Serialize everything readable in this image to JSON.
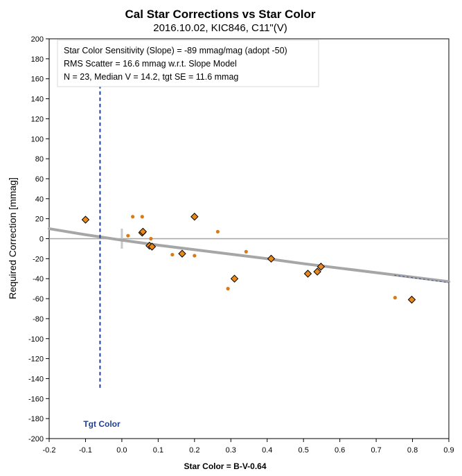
{
  "chart_data": {
    "type": "scatter",
    "title": "Cal Star Corrections vs Star Color",
    "subtitle": "2016.10.02, KIC846, C11\"(V)",
    "xlabel": "Star Color = B-V-0.64",
    "ylabel": "Required Correction [mmag]",
    "xlim": [
      -0.2,
      0.9
    ],
    "ylim": [
      -200,
      200
    ],
    "x_ticks": [
      "-0.2",
      "-0.1",
      "0.0",
      "0.1",
      "0.2",
      "0.3",
      "0.4",
      "0.5",
      "0.6",
      "0.7",
      "0.8",
      "0.9"
    ],
    "y_ticks": [
      "200",
      "180",
      "160",
      "140",
      "120",
      "100",
      "80",
      "60",
      "40",
      "20",
      "0",
      "-20",
      "-40",
      "-60",
      "-80",
      "-100",
      "-120",
      "-140",
      "-160",
      "-180",
      "-200"
    ],
    "grid": false,
    "annotations": [
      "Star Color Sensitivity (Slope)  =  -89 mmag/mag (adopt -50)",
      "RMS Scatter = 16.6 mmag w.r.t. Slope Model",
      "N = 23,  Median V = 14.2, tgt SE = 11.6 mmag"
    ],
    "target_label": "Tgt Color",
    "target_color": -0.06,
    "colors": {
      "marker": "#e8891c",
      "marker_edge": "#000000",
      "dot": "#d97a1a",
      "trend": "#a6a6a6",
      "zero_line": "#a6a6a6",
      "target_line": "#1f3f8f"
    },
    "series": [
      {
        "marker": "diamond",
        "x": [
          -0.1,
          0.056,
          0.058,
          0.076,
          0.083,
          0.166,
          0.2,
          0.31,
          0.411,
          0.512,
          0.538,
          0.548,
          0.798
        ],
        "y": [
          19,
          6,
          7,
          -7,
          -8,
          -15,
          22,
          -40,
          -20,
          -35,
          -33,
          -28,
          -61
        ]
      },
      {
        "marker": "dot",
        "x": [
          0.017,
          0.03,
          0.056,
          0.08,
          0.139,
          0.2,
          0.264,
          0.292,
          0.342,
          0.752
        ],
        "y": [
          3,
          22,
          22,
          0,
          -16,
          -17,
          7,
          -50,
          -13,
          -59
        ]
      }
    ],
    "trend_line": {
      "x": [
        -0.2,
        -0.1,
        0.0,
        0.1,
        0.2,
        0.3,
        0.4,
        0.5,
        0.6,
        0.7,
        0.8,
        0.9
      ],
      "y": [
        10,
        4,
        -1.5,
        -6.5,
        -11,
        -15.5,
        -20,
        -25,
        -29.5,
        -34,
        -38.5,
        -43
      ]
    }
  }
}
